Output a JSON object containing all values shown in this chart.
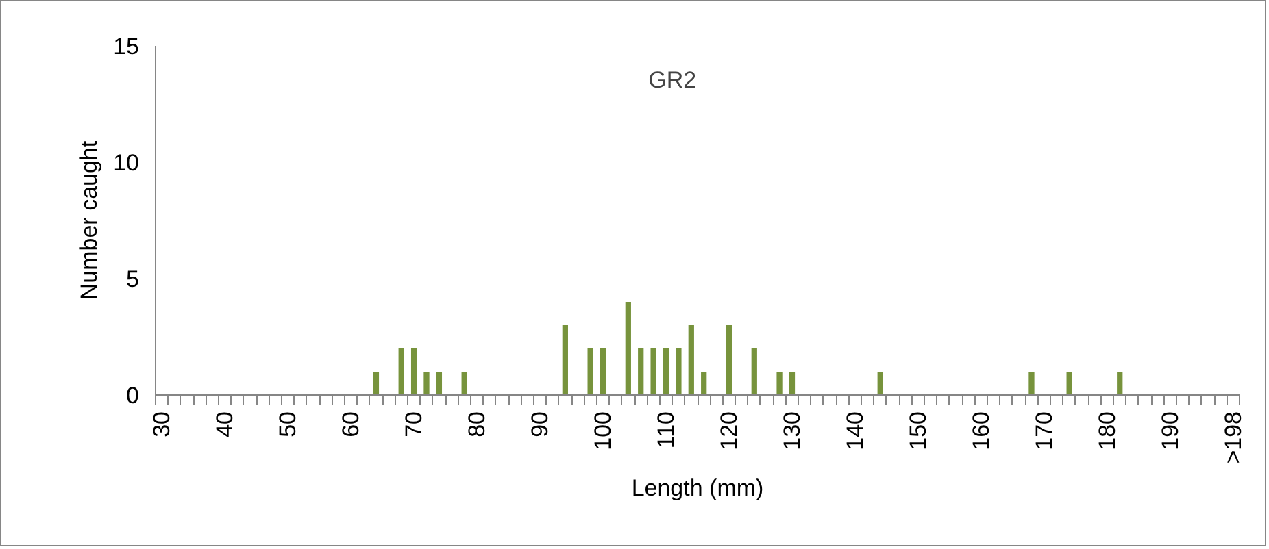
{
  "chart_data": {
    "type": "bar",
    "title": "GR2",
    "xlabel": "Length (mm)",
    "ylabel": "Number caught",
    "categories": [
      "30",
      null,
      null,
      null,
      null,
      "40",
      null,
      null,
      null,
      null,
      "50",
      null,
      null,
      null,
      null,
      "60",
      null,
      null,
      null,
      null,
      "70",
      null,
      null,
      null,
      null,
      "80",
      null,
      null,
      null,
      null,
      "90",
      null,
      null,
      null,
      null,
      "100",
      null,
      null,
      null,
      null,
      "110",
      null,
      null,
      null,
      null,
      "120",
      null,
      null,
      null,
      null,
      "130",
      null,
      null,
      null,
      null,
      "140",
      null,
      null,
      null,
      null,
      "150",
      null,
      null,
      null,
      null,
      "160",
      null,
      null,
      null,
      null,
      "170",
      null,
      null,
      null,
      null,
      "180",
      null,
      null,
      null,
      null,
      "190",
      null,
      null,
      null,
      null,
      ">198"
    ],
    "values": [
      0,
      0,
      0,
      0,
      0,
      0,
      0,
      0,
      0,
      0,
      0,
      0,
      0,
      0,
      0,
      0,
      0,
      1,
      0,
      2,
      2,
      1,
      1,
      0,
      1,
      0,
      0,
      0,
      0,
      0,
      0,
      0,
      3,
      0,
      2,
      2,
      0,
      4,
      2,
      2,
      2,
      2,
      3,
      1,
      0,
      3,
      0,
      2,
      0,
      1,
      1,
      0,
      0,
      0,
      0,
      0,
      0,
      1,
      0,
      0,
      0,
      0,
      0,
      0,
      0,
      0,
      0,
      0,
      0,
      1,
      0,
      0,
      1,
      0,
      0,
      0,
      1,
      0,
      0,
      0,
      0,
      0,
      0,
      0,
      0,
      0
    ],
    "color": "#77933c",
    "ylim": [
      0,
      15
    ],
    "yticks": [
      0,
      5,
      10,
      15
    ],
    "grid": false
  }
}
